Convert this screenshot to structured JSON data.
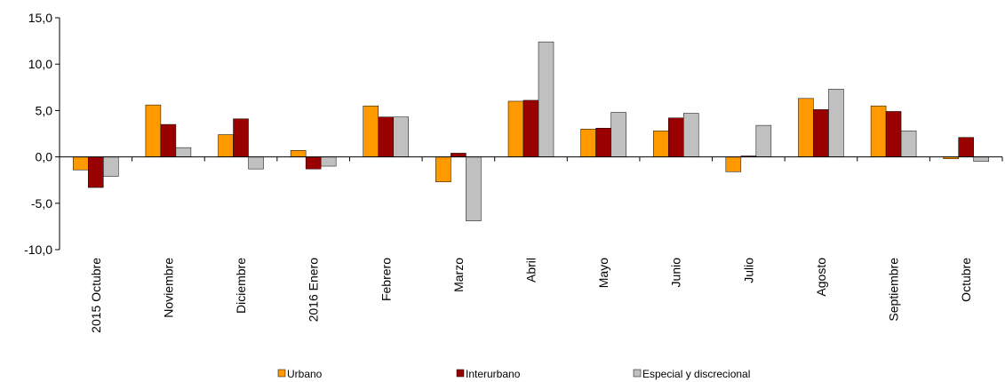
{
  "chart_data": {
    "type": "bar",
    "categories": [
      "2015 Octubre",
      "Noviembre",
      "Diciembre",
      "2016 Enero",
      "Febrero",
      "Marzo",
      "Abril",
      "Mayo",
      "Junio",
      "Julio",
      "Agosto",
      "Septiembre",
      "Octubre"
    ],
    "series": [
      {
        "name": "Urbano",
        "color": "#ff9900",
        "values": [
          -1.4,
          5.6,
          2.4,
          0.7,
          5.5,
          -2.7,
          6.0,
          3.0,
          2.8,
          -1.6,
          6.3,
          5.5,
          -0.2
        ]
      },
      {
        "name": "Interurbano",
        "color": "#990000",
        "values": [
          -3.3,
          3.5,
          4.1,
          -1.3,
          4.3,
          0.4,
          6.1,
          3.1,
          4.2,
          0.1,
          5.1,
          4.9,
          2.1
        ]
      },
      {
        "name": "Especial y discrecional",
        "color": "#c0c0c0",
        "values": [
          -2.1,
          1.0,
          -1.3,
          -1.0,
          4.3,
          -6.9,
          12.4,
          4.8,
          4.7,
          3.4,
          7.3,
          2.8,
          -0.5
        ]
      }
    ],
    "ylim": [
      -10,
      15
    ],
    "yticks": [
      {
        "value": -10,
        "label": "-10,0"
      },
      {
        "value": -5,
        "label": "-5,0"
      },
      {
        "value": 0,
        "label": "0,0"
      },
      {
        "value": 5,
        "label": "5,0"
      },
      {
        "value": 10,
        "label": "10,0"
      },
      {
        "value": 15,
        "label": "15,0"
      }
    ],
    "legend": "bottom"
  }
}
